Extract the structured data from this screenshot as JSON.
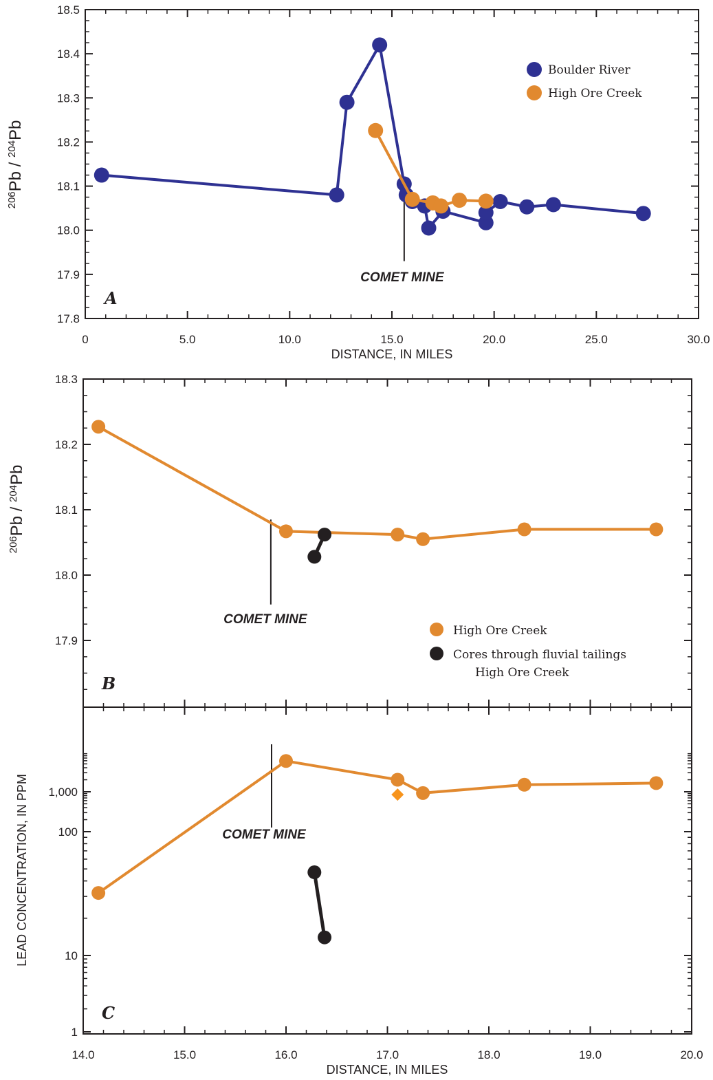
{
  "colors": {
    "boulder": "#2e3192",
    "high_ore": "#f7941d",
    "high_ore_marker": "#e1892f",
    "cores": "#231f20",
    "axis": "#231f20"
  },
  "labels": {
    "pb_ratio": {
      "sup1": "206",
      "pb1": "Pb",
      "slash": "/",
      "sup2": "204",
      "pb2": "Pb"
    },
    "distance": "DISTANCE, IN MILES",
    "lead": "LEAD CONCENTRATION, IN PPM",
    "comet_mine": "COMET MINE"
  },
  "chart_data": [
    {
      "panel": "A",
      "type": "line",
      "xlabel": "DISTANCE, IN MILES",
      "ylabel": "206Pb/204Pb",
      "xlim": [
        0,
        30
      ],
      "ylim": [
        17.8,
        18.5
      ],
      "x_ticks": [
        "0",
        "5.0",
        "10.0",
        "15.0",
        "20.0",
        "25.0",
        "30.0"
      ],
      "y_ticks": [
        "17.8",
        "17.9",
        "18.0",
        "18.1",
        "18.2",
        "18.3",
        "18.4",
        "18.5"
      ],
      "legend": "top-right",
      "annotation": {
        "text": "COMET MINE",
        "x": 15.6
      },
      "series": [
        {
          "name": "Boulder River",
          "color_key": "boulder",
          "points": [
            [
              0.8,
              18.125
            ],
            [
              12.3,
              18.08
            ],
            [
              12.8,
              18.29
            ],
            [
              14.4,
              18.42
            ],
            [
              15.6,
              18.105
            ],
            [
              15.7,
              18.08
            ],
            [
              16.0,
              18.065
            ],
            [
              16.6,
              18.055
            ],
            [
              16.8,
              18.005
            ],
            [
              17.5,
              18.043
            ],
            [
              19.6,
              18.017
            ],
            [
              19.6,
              18.04
            ],
            [
              20.3,
              18.065
            ],
            [
              21.6,
              18.053
            ],
            [
              22.9,
              18.058
            ],
            [
              27.3,
              18.038
            ]
          ]
        },
        {
          "name": "High Ore Creek",
          "color_key": "high_ore",
          "points": [
            [
              14.2,
              18.226
            ],
            [
              16.0,
              18.07
            ],
            [
              17.0,
              18.062
            ],
            [
              17.4,
              18.055
            ],
            [
              18.3,
              18.068
            ],
            [
              19.6,
              18.066
            ]
          ]
        }
      ]
    },
    {
      "panel": "B",
      "type": "line",
      "xlim": [
        14,
        20
      ],
      "ylim": [
        17.8,
        18.3
      ],
      "y_ticks": [
        "17.9",
        "18.0",
        "18.1",
        "18.2",
        "18.3"
      ],
      "ylabel": "206Pb/204Pb",
      "legend": "bottom-right",
      "annotation": {
        "text": "COMET MINE",
        "x": 15.85
      },
      "series": [
        {
          "name": "High Ore Creek",
          "color_key": "high_ore",
          "points": [
            [
              14.15,
              18.227
            ],
            [
              16.0,
              18.067
            ],
            [
              17.1,
              18.062
            ],
            [
              17.35,
              18.055
            ],
            [
              18.35,
              18.07
            ],
            [
              19.65,
              18.07
            ]
          ]
        },
        {
          "name": "Cores through fluvial tailings High Ore Creek",
          "legend_lines": [
            "Cores through fluvial tailings",
            "High Ore Creek"
          ],
          "color_key": "cores",
          "points": [
            [
              16.28,
              18.028
            ],
            [
              16.38,
              18.062
            ]
          ]
        }
      ]
    },
    {
      "panel": "C",
      "type": "line",
      "xlabel": "DISTANCE, IN MILES",
      "ylabel": "LEAD CONCENTRATION, IN PPM",
      "xlim": [
        14,
        20
      ],
      "ylim": [
        1,
        10000
      ],
      "y_scale": "log",
      "x_ticks": [
        "14.0",
        "15.0",
        "16.0",
        "17.0",
        "18.0",
        "19.0",
        "20.0"
      ],
      "y_ticks": [
        "1",
        "10",
        "100",
        "1,000"
      ],
      "annotation": {
        "text": "COMET MINE",
        "x": 15.85
      },
      "series": [
        {
          "name": "High Ore Creek",
          "color_key": "high_ore",
          "points": [
            [
              14.15,
              32
            ],
            [
              16.0,
              5900
            ],
            [
              17.1,
              2000
            ],
            [
              17.35,
              930
            ],
            [
              18.35,
              1500
            ],
            [
              19.65,
              1650
            ]
          ]
        },
        {
          "name": "High Ore Creek (diamond)",
          "color_key": "high_ore",
          "marker": "diamond",
          "points": [
            [
              17.1,
              850
            ]
          ]
        },
        {
          "name": "Cores through fluvial tailings High Ore Creek",
          "color_key": "cores",
          "points": [
            [
              16.28,
              47
            ],
            [
              16.38,
              14
            ]
          ]
        }
      ]
    }
  ]
}
